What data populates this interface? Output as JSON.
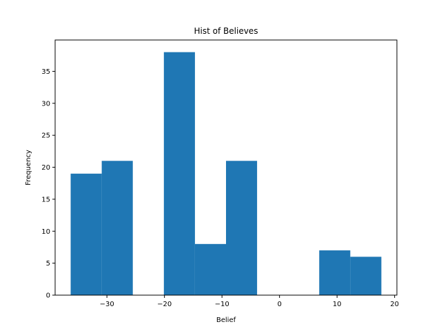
{
  "chart_data": {
    "type": "bar",
    "title": "Hist of Believes",
    "xlabel": "Belief",
    "ylabel": "Frequency",
    "bin_edges": [
      -36.3,
      -30.9,
      -25.5,
      -20.1,
      -14.7,
      -9.3,
      -3.9,
      1.5,
      6.9,
      12.3,
      17.7
    ],
    "values": [
      19,
      21,
      0,
      38,
      8,
      21,
      0,
      0,
      7,
      6
    ],
    "xlim": [
      -39.0,
      20.4
    ],
    "ylim": [
      0,
      39.9
    ],
    "xticks": [
      -30,
      -20,
      -10,
      0,
      10,
      20
    ],
    "xtick_labels": [
      "−30",
      "−20",
      "−10",
      "0",
      "10",
      "20"
    ],
    "yticks": [
      0,
      5,
      10,
      15,
      20,
      25,
      30,
      35
    ],
    "ytick_labels": [
      "0",
      "5",
      "10",
      "15",
      "20",
      "25",
      "30",
      "35"
    ],
    "bar_color": "#1f77b4",
    "grid": false,
    "legend": "none"
  }
}
